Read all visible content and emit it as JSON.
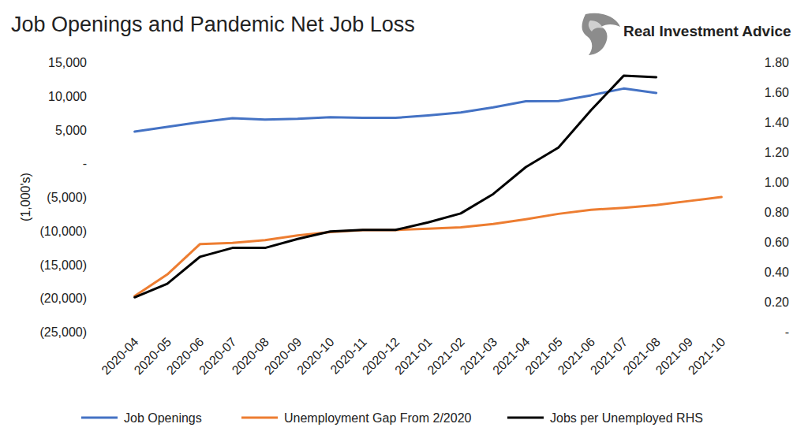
{
  "chart_data": {
    "type": "line",
    "title": "Job Openings and Pandemic Net Job Loss",
    "source": "Real Investment Advice",
    "y_label": "(1,000's)",
    "categories": [
      "2020-04",
      "2020-05",
      "2020-06",
      "2020-07",
      "2020-08",
      "2020-09",
      "2020-10",
      "2020-11",
      "2020-12",
      "2021-01",
      "2021-02",
      "2021-03",
      "2021-04",
      "2021-05",
      "2021-06",
      "2021-07",
      "2021-08",
      "2021-09",
      "2021-10"
    ],
    "series": [
      {
        "name": "Job Openings",
        "color": "#4472c4",
        "values": [
          4700,
          5400,
          6100,
          6700,
          6500,
          6600,
          6850,
          6750,
          6750,
          7100,
          7550,
          8300,
          9200,
          9250,
          10100,
          11100,
          10450,
          null,
          null
        ]
      },
      {
        "name": "Unemployment Gap From 2/2020",
        "color": "#ed7d31",
        "values": [
          -19700,
          -16500,
          -12000,
          -11800,
          -11400,
          -10700,
          -10200,
          -9900,
          -9900,
          -9700,
          -9500,
          -9000,
          -8300,
          -7500,
          -6900,
          -6600,
          -6200,
          -5600,
          -5000
        ]
      },
      {
        "name": "Jobs per Unemployed RHS",
        "color": "#000000",
        "axis": "y2",
        "values": [
          0.23,
          0.32,
          0.5,
          0.56,
          0.56,
          0.62,
          0.67,
          0.68,
          0.68,
          0.73,
          0.79,
          0.92,
          1.1,
          1.23,
          1.48,
          1.71,
          1.7,
          null,
          null
        ]
      }
    ],
    "ylim": [
      -25000,
      15000
    ],
    "yticks": [
      {
        "value": 15000,
        "label": "15,000"
      },
      {
        "value": 10000,
        "label": "10,000"
      },
      {
        "value": 5000,
        "label": "5,000"
      },
      {
        "value": 0,
        "label": "-"
      },
      {
        "value": -5000,
        "label": "(5,000)"
      },
      {
        "value": -10000,
        "label": "(10,000)"
      },
      {
        "value": -15000,
        "label": "(15,000)"
      },
      {
        "value": -20000,
        "label": "(20,000)"
      },
      {
        "value": -25000,
        "label": "(25,000)"
      }
    ],
    "y2lim": [
      0,
      1.8
    ],
    "y2ticks": [
      {
        "value": 1.8,
        "label": "1.80"
      },
      {
        "value": 1.6,
        "label": "1.60"
      },
      {
        "value": 1.4,
        "label": "1.40"
      },
      {
        "value": 1.2,
        "label": "1.20"
      },
      {
        "value": 1.0,
        "label": "1.00"
      },
      {
        "value": 0.8,
        "label": "0.80"
      },
      {
        "value": 0.6,
        "label": "0.60"
      },
      {
        "value": 0.4,
        "label": "0.40"
      },
      {
        "value": 0.2,
        "label": "0.20"
      },
      {
        "value": 0,
        "label": "-"
      }
    ],
    "grid": false,
    "legend": "bottom"
  }
}
